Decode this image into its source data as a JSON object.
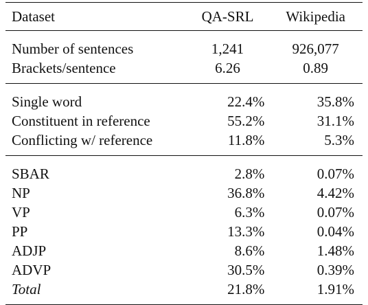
{
  "header": {
    "col_dataset": "Dataset",
    "col_qasrl": "QA-SRL",
    "col_wikipedia": "Wikipedia"
  },
  "groups": [
    {
      "rows": [
        {
          "label": "Number of sentences",
          "qasrl": "1,241",
          "wikipedia": "926,077"
        },
        {
          "label": "Brackets/sentence",
          "qasrl": "6.26",
          "wikipedia": "0.89"
        }
      ]
    },
    {
      "rows": [
        {
          "label": "Single word",
          "qasrl": "22.4%",
          "wikipedia": "35.8%"
        },
        {
          "label": "Constituent in reference",
          "qasrl": "55.2%",
          "wikipedia": "31.1%"
        },
        {
          "label": "Conflicting w/ reference",
          "qasrl": "11.8%",
          "wikipedia": "5.3%"
        }
      ]
    },
    {
      "rows": [
        {
          "label": "SBAR",
          "qasrl": "2.8%",
          "wikipedia": "0.07%"
        },
        {
          "label": "NP",
          "qasrl": "36.8%",
          "wikipedia": "4.42%"
        },
        {
          "label": "VP",
          "qasrl": "6.3%",
          "wikipedia": "0.07%"
        },
        {
          "label": "PP",
          "qasrl": "13.3%",
          "wikipedia": "0.04%"
        },
        {
          "label": "ADJP",
          "qasrl": "8.6%",
          "wikipedia": "1.48%"
        },
        {
          "label": "ADVP",
          "qasrl": "30.5%",
          "wikipedia": "0.39%"
        },
        {
          "label": "Total",
          "qasrl": "21.8%",
          "wikipedia": "1.91%"
        }
      ]
    }
  ]
}
